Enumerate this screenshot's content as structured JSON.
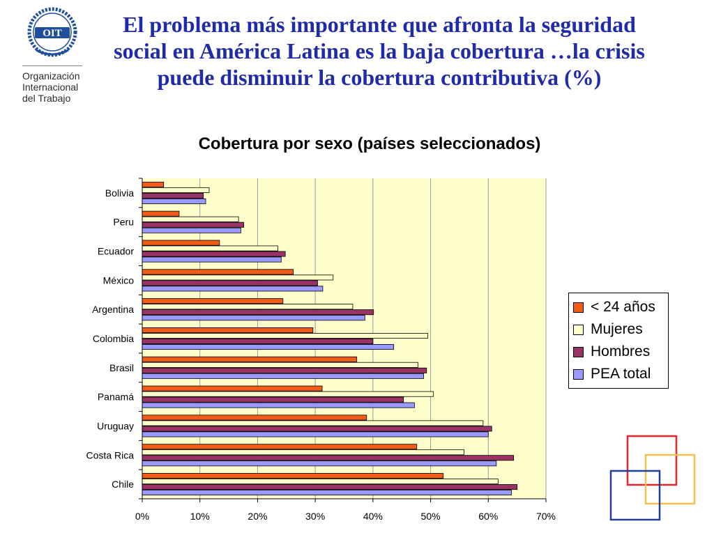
{
  "logo": {
    "acronym": "OIT",
    "org_lines": [
      "Organización",
      "Internacional",
      "del Trabajo"
    ]
  },
  "slide_title": "El problema más importante que afronta la seguridad social en América Latina es la baja cobertura  …la crisis puede disminuir la cobertura contributiva (%)",
  "chart_data": {
    "type": "bar",
    "orientation": "horizontal",
    "title": "Cobertura por sexo (países seleccionados)",
    "categories": [
      "Bolivia",
      "Peru",
      "Ecuador",
      "México",
      "Argentina",
      "Colombia",
      "Brasil",
      "Panamá",
      "Uruguay",
      "Costa Rica",
      "Chile"
    ],
    "series": [
      {
        "name": "< 24 años",
        "color": "#f25c19",
        "values": [
          3.7,
          6.4,
          13.4,
          26.2,
          24.4,
          29.6,
          37.2,
          31.2,
          38.9,
          47.6,
          52.2
        ]
      },
      {
        "name": "Mujeres",
        "color": "#ffffcc",
        "values": [
          11.6,
          16.7,
          23.5,
          33.1,
          36.5,
          49.5,
          47.8,
          50.5,
          59.1,
          55.8,
          61.7
        ]
      },
      {
        "name": "Hombres",
        "color": "#993366",
        "values": [
          10.6,
          17.6,
          24.8,
          30.4,
          40.1,
          40.0,
          49.3,
          45.3,
          60.6,
          64.4,
          65.0
        ]
      },
      {
        "name": "PEA total",
        "color": "#9999ff",
        "values": [
          11.0,
          17.1,
          24.1,
          31.3,
          38.6,
          43.6,
          48.8,
          47.2,
          60.0,
          61.4,
          64.0
        ]
      }
    ],
    "xlim": [
      0,
      70
    ],
    "xticks": [
      0,
      10,
      20,
      30,
      40,
      50,
      60,
      70
    ],
    "xtick_labels": [
      "0%",
      "10%",
      "20%",
      "30%",
      "40%",
      "50%",
      "60%",
      "70%"
    ],
    "legend_position": "right",
    "grid": true,
    "plot_background": "#ffffcc"
  }
}
